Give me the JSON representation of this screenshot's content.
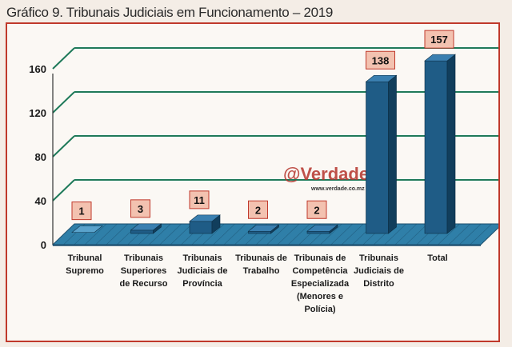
{
  "chart_data": {
    "type": "bar",
    "title": "Gráfico 9. Tribunais Judiciais em  Funcionamento – 2019",
    "categories": [
      [
        "Tribunal",
        "Supremo"
      ],
      [
        "Tribunais",
        "Superiores",
        "de Recurso"
      ],
      [
        "Tribunais",
        "Judiciais de",
        "Província"
      ],
      [
        "Tribunais de",
        "Trabalho"
      ],
      [
        "Tribunais de",
        "Competência",
        "Especializada",
        "(Menores e",
        "Polícia)"
      ],
      [
        "Tribunais",
        "Judiciais de",
        "Distrito"
      ],
      [
        "Total"
      ]
    ],
    "values": [
      1,
      3,
      11,
      2,
      2,
      138,
      157
    ],
    "yticks": [
      0,
      40,
      80,
      120,
      160
    ],
    "ylim": [
      0,
      160
    ],
    "xlabel": "",
    "ylabel": "",
    "grid": true,
    "legend": "none"
  },
  "watermark": {
    "name": "@Verdade",
    "url": "www.verdade.co.mz"
  },
  "colors": {
    "bar_front": "#1f5c86",
    "bar_side": "#113e5c",
    "bar_top": "#3a7fb0",
    "grid": "#1f7a5a",
    "floor": "#2f7fa8",
    "label_fill": "#f3c2b0",
    "label_border": "#c0392b",
    "frame_border": "#c0392b"
  }
}
